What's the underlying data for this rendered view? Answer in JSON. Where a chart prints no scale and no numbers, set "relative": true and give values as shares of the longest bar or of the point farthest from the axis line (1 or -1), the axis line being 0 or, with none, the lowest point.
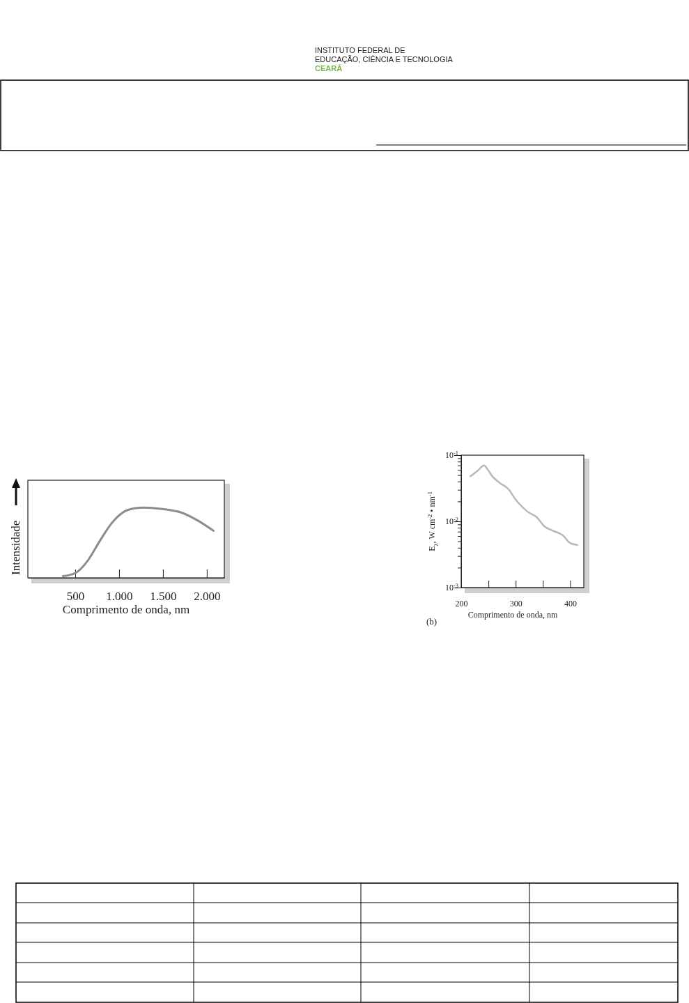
{
  "chart_data": [
    {
      "type": "line",
      "relative": true,
      "xlabel": "Comprimento de onda, nm",
      "ylabel": "Intensidade",
      "annotations": [
        "INSTITUTO FEDERAL DE",
        "EDUCAÇÃO, CIÊNCIA E TECNOLOGIA",
        "CEARÁ"
      ],
      "xlim": [
        -40,
        2200
      ],
      "xticks": [
        {
          "value": 500,
          "label": "500"
        },
        {
          "value": 1000,
          "label": "1.000"
        },
        {
          "value": 1500,
          "label": "1.500"
        },
        {
          "value": 2000,
          "label": "2.000"
        }
      ],
      "series": [
        {
          "color": "#8c8c8c",
          "x": [
            360,
            500,
            646,
            778,
            911,
            1043,
            1176,
            1282,
            1494,
            1706,
            1891,
            2077
          ],
          "values": [
            0.024,
            0.067,
            0.25,
            0.52,
            0.77,
            0.93,
            0.99,
            1.0,
            0.98,
            0.93,
            0.82,
            0.67
          ]
        }
      ],
      "marker": "none"
    },
    {
      "type": "line",
      "log": "y",
      "xlabel": "Comprimento de onda, nm",
      "ylabel": "E$_{λ}$, W cm$^{-2}$ • nm$^{-1}$",
      "annotations": [
        "(b)"
      ],
      "xlim": [
        200,
        425
      ],
      "xticks": [
        200,
        {
          "value": 250,
          "label": null
        },
        300,
        {
          "value": 350,
          "label": null
        },
        400
      ],
      "ylim": [
        0.001,
        0.1
      ],
      "yticks": [
        {
          "value": 0.001,
          "label": "10$^{-3}$"
        },
        {
          "value": 0.002,
          "label": null
        },
        {
          "value": 0.003,
          "label": null
        },
        {
          "value": 0.004,
          "label": null
        },
        {
          "value": 0.005,
          "label": null
        },
        {
          "value": 0.006,
          "label": null
        },
        {
          "value": 0.007,
          "label": null
        },
        {
          "value": 0.008,
          "label": null
        },
        {
          "value": 0.009,
          "label": null
        },
        {
          "value": 0.01,
          "label": "10$^{-2}$"
        },
        {
          "value": 0.02,
          "label": null
        },
        {
          "value": 0.03,
          "label": null
        },
        {
          "value": 0.04,
          "label": null
        },
        {
          "value": 0.05,
          "label": null
        },
        {
          "value": 0.06,
          "label": null
        },
        {
          "value": 0.07,
          "label": null
        },
        {
          "value": 0.08,
          "label": null
        },
        {
          "value": 0.09,
          "label": null
        },
        {
          "value": 0.1,
          "label": "10$^{-1}$"
        }
      ],
      "series": [
        {
          "color": "#b8b8b8",
          "x": [
            217,
            230,
            242,
            249,
            258,
            271,
            288,
            297,
            305,
            322,
            339,
            352,
            369,
            386,
            400,
            413
          ],
          "values": [
            0.048,
            0.058,
            0.07,
            0.06,
            0.047,
            0.038,
            0.03,
            0.023,
            0.019,
            0.014,
            0.0115,
            0.0085,
            0.0072,
            0.0062,
            0.0047,
            0.0044
          ]
        }
      ],
      "marker": "none"
    }
  ]
}
